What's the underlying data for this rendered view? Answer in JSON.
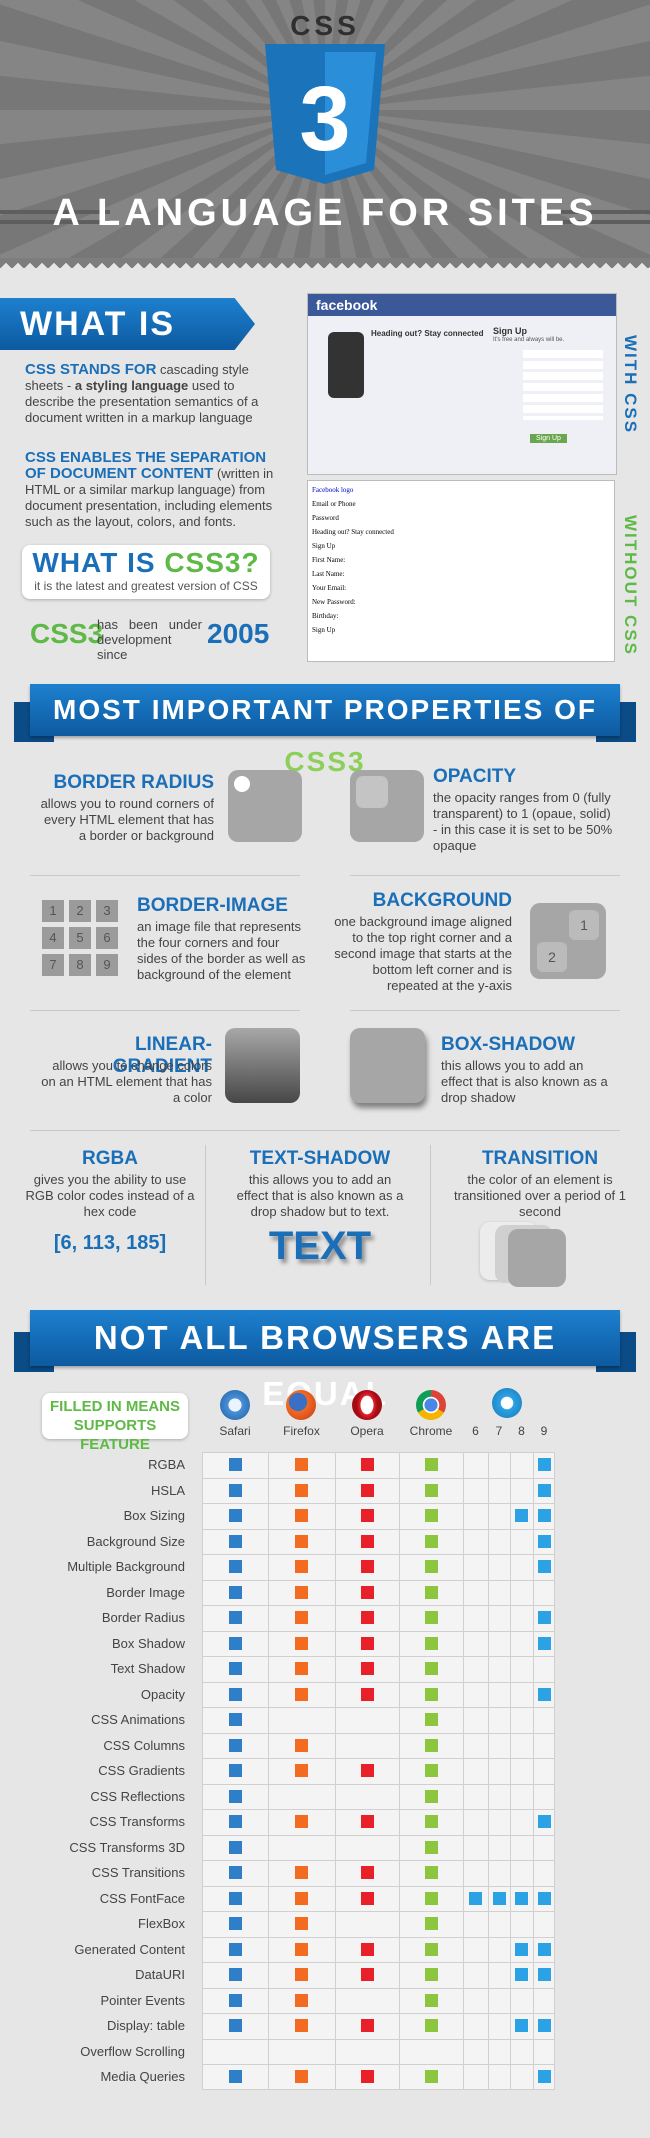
{
  "header": {
    "logo_top": "CSS",
    "logo_number": "3",
    "title": "A LANGUAGE FOR SITES"
  },
  "intro": {
    "heading": "WHAT IS CSS?",
    "para1": [
      "CSS STANDS FOR",
      " cascading style sheets - ",
      "a styling language",
      " used to describe the presentation semantics of a document written in a markup language"
    ],
    "para2": [
      "CSS ENABLES THE SEPARATION OF DOCUMENT CONTENT",
      " (written in HTML or a similar markup language) from document presentation, including elements such as the layout, colors, and fonts."
    ],
    "css3_box": {
      "heading": "WHAT IS ",
      "heading_accent": "CSS3?",
      "text": "it is the latest and greatest version of CSS"
    },
    "since": {
      "name": "CSS3",
      "text": "has been under development since",
      "year": "2005"
    },
    "with_label": "WITH CSS",
    "without_label": "WITHOUT CSS",
    "facebook_with": {
      "logo": "facebook",
      "tagline": "Heading out? Stay connected",
      "signup": "Sign Up",
      "free": "It's free and always will be.",
      "button": "Sign Up"
    },
    "facebook_without": [
      "Facebook logo",
      "Email or Phone",
      "Password",
      "Heading out? Stay connected",
      "Sign Up",
      "First Name:",
      "Last Name:",
      "Your Email:",
      "New Password:",
      "Birthday:",
      "Sign Up"
    ]
  },
  "properties": {
    "heading": "MOST IMPORTANT PROPERTIES OF ",
    "heading_accent": "CSS3",
    "items": [
      {
        "title": "BORDER RADIUS",
        "text": "allows you to round corners of every HTML element that has a border or background"
      },
      {
        "title": "OPACITY",
        "text": "the opacity ranges from 0 (fully transparent) to 1 (opaue, solid) - in this case it is set to be 50% opaque"
      },
      {
        "title": "BORDER-IMAGE",
        "text": "an image file that represents the four corners and four sides of the border as well as background of the element"
      },
      {
        "title": "BACKGROUND",
        "text": "one background image aligned to the top right corner and a second image that starts at the bottom left corner and is repeated at the y-axis"
      },
      {
        "title": "LINEAR-GRADIENT",
        "text": "allows you to change colors on an HTML element that has a color"
      },
      {
        "title": "BOX-SHADOW",
        "text": "this allows you to add an effect that is also known as a drop shadow"
      },
      {
        "title": "RGBA",
        "text": "gives you the ability to use RGB color codes instead of a hex code"
      },
      {
        "title": "TEXT-SHADOW",
        "text": "this allows you to add an effect that is also known as a drop shadow but to text."
      },
      {
        "title": "TRANSITION",
        "text": "the color of an element is transitioned over a period of 1 second"
      }
    ],
    "border_image_cells": [
      "1",
      "2",
      "3",
      "4",
      "5",
      "6",
      "7",
      "8",
      "9"
    ],
    "background_cells": [
      "1",
      "2"
    ],
    "rgba_value": "[6, 113, 185]",
    "text_sample": "TEXT"
  },
  "browsers": {
    "heading": "NOT ALL BROWSERS ARE EQUAL",
    "legend": [
      "FILLED IN MEANS",
      "SUPPORTS FEATURE"
    ],
    "columns": [
      {
        "name": "Safari",
        "color": "#2f7fc8"
      },
      {
        "name": "Firefox",
        "color": "#f26b21"
      },
      {
        "name": "Opera",
        "color": "#e8202a"
      },
      {
        "name": "Chrome",
        "color": "#8cc63f"
      },
      {
        "name": "6",
        "color": "#2ba2e3"
      },
      {
        "name": "7",
        "color": "#2ba2e3"
      },
      {
        "name": "8",
        "color": "#2ba2e3"
      },
      {
        "name": "9",
        "color": "#2ba2e3"
      }
    ],
    "rows": [
      {
        "feature": "RGBA",
        "support": [
          true,
          true,
          true,
          true,
          false,
          false,
          false,
          true
        ]
      },
      {
        "feature": "HSLA",
        "support": [
          true,
          true,
          true,
          true,
          false,
          false,
          false,
          true
        ]
      },
      {
        "feature": "Box Sizing",
        "support": [
          true,
          true,
          true,
          true,
          false,
          false,
          true,
          true
        ]
      },
      {
        "feature": "Background Size",
        "support": [
          true,
          true,
          true,
          true,
          false,
          false,
          false,
          true
        ]
      },
      {
        "feature": "Multiple Background",
        "support": [
          true,
          true,
          true,
          true,
          false,
          false,
          false,
          true
        ]
      },
      {
        "feature": "Border Image",
        "support": [
          true,
          true,
          true,
          true,
          false,
          false,
          false,
          false
        ]
      },
      {
        "feature": "Border Radius",
        "support": [
          true,
          true,
          true,
          true,
          false,
          false,
          false,
          true
        ]
      },
      {
        "feature": "Box Shadow",
        "support": [
          true,
          true,
          true,
          true,
          false,
          false,
          false,
          true
        ]
      },
      {
        "feature": "Text Shadow",
        "support": [
          true,
          true,
          true,
          true,
          false,
          false,
          false,
          false
        ]
      },
      {
        "feature": "Opacity",
        "support": [
          true,
          true,
          true,
          true,
          false,
          false,
          false,
          true
        ]
      },
      {
        "feature": "CSS Animations",
        "support": [
          true,
          false,
          false,
          true,
          false,
          false,
          false,
          false
        ]
      },
      {
        "feature": "CSS Columns",
        "support": [
          true,
          true,
          false,
          true,
          false,
          false,
          false,
          false
        ]
      },
      {
        "feature": "CSS Gradients",
        "support": [
          true,
          true,
          true,
          true,
          false,
          false,
          false,
          false
        ]
      },
      {
        "feature": "CSS Reflections",
        "support": [
          true,
          false,
          false,
          true,
          false,
          false,
          false,
          false
        ]
      },
      {
        "feature": "CSS Transforms",
        "support": [
          true,
          true,
          true,
          true,
          false,
          false,
          false,
          true
        ]
      },
      {
        "feature": "CSS Transforms 3D",
        "support": [
          true,
          false,
          false,
          true,
          false,
          false,
          false,
          false
        ]
      },
      {
        "feature": "CSS Transitions",
        "support": [
          true,
          true,
          true,
          true,
          false,
          false,
          false,
          false
        ]
      },
      {
        "feature": "CSS FontFace",
        "support": [
          true,
          true,
          true,
          true,
          true,
          true,
          true,
          true
        ]
      },
      {
        "feature": "FlexBox",
        "support": [
          true,
          true,
          false,
          true,
          false,
          false,
          false,
          false
        ]
      },
      {
        "feature": "Generated Content",
        "support": [
          true,
          true,
          true,
          true,
          false,
          false,
          true,
          true
        ]
      },
      {
        "feature": "DataURI",
        "support": [
          true,
          true,
          true,
          true,
          false,
          false,
          true,
          true
        ]
      },
      {
        "feature": "Pointer Events",
        "support": [
          true,
          true,
          false,
          true,
          false,
          false,
          false,
          false
        ]
      },
      {
        "feature": "Display: table",
        "support": [
          true,
          true,
          true,
          true,
          false,
          false,
          true,
          true
        ]
      },
      {
        "feature": "Overflow Scrolling",
        "support": [
          false,
          false,
          false,
          false,
          false,
          false,
          false,
          false
        ]
      },
      {
        "feature": "Media Queries",
        "support": [
          true,
          true,
          true,
          true,
          false,
          false,
          false,
          true
        ]
      }
    ]
  }
}
